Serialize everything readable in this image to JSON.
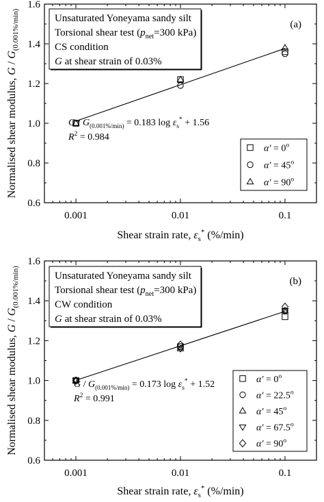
{
  "chart_data": [
    {
      "type": "scatter",
      "panel_label": "(a)",
      "x_scale": "log",
      "xlim": [
        0.0005,
        0.2
      ],
      "ylim": [
        0.6,
        1.6
      ],
      "xticks": [
        {
          "value": 0.001,
          "label": "0.001"
        },
        {
          "value": 0.01,
          "label": "0.01"
        },
        {
          "value": 0.1,
          "label": "0.1"
        }
      ],
      "yticks": [
        {
          "value": 0.6,
          "label": "0.6"
        },
        {
          "value": 0.8,
          "label": "0.8"
        },
        {
          "value": 1.0,
          "label": "1.0"
        },
        {
          "value": 1.2,
          "label": "1.2"
        },
        {
          "value": 1.4,
          "label": "1.4"
        },
        {
          "value": 1.6,
          "label": "1.6"
        }
      ],
      "info_lines": [
        "Unsaturated Yoneyama sandy silt",
        "Torsional shear test (",
        "p",
        "net",
        "=300 kPa)",
        "CS condition",
        "G at shear strain of 0.03%"
      ],
      "info": {
        "line1": "Unsaturated Yoneyama sandy silt",
        "line2_pre": "Torsional shear test (",
        "line2_p": "p",
        "line2_sub": "net",
        "line2_post": "=300 kPa)",
        "line3": "CS condition",
        "line4_g": "G",
        "line4_rest": " at shear strain of 0.03%"
      },
      "equation": {
        "lhs_g": "G",
        "lhs_slash": " / ",
        "lhs_g2": "G",
        "lhs_sub": "(0.001%/min)",
        "middle": " = 0.183 log ",
        "eps": "ε",
        "eps_sub": "s",
        "eps_sup": "*",
        "tail": " + 1.56",
        "r2_r": "R",
        "r2_sup": "2",
        "r2_value": " = 0.984"
      },
      "fit": {
        "slope": 0.183,
        "intercept": 1.56,
        "x_range": [
          0.001,
          0.1
        ]
      },
      "legend_position": "bottom-right",
      "series": [
        {
          "name": "0",
          "marker": "square",
          "points": [
            [
              0.001,
              1.0
            ],
            [
              0.01,
              1.22
            ],
            [
              0.1,
              1.36
            ]
          ]
        },
        {
          "name": "45",
          "marker": "circle",
          "points": [
            [
              0.001,
              1.0
            ],
            [
              0.01,
              1.19
            ],
            [
              0.1,
              1.35
            ]
          ]
        },
        {
          "name": "90",
          "marker": "triangle-up",
          "points": [
            [
              0.001,
              1.0
            ],
            [
              0.01,
              1.22
            ],
            [
              0.1,
              1.38
            ]
          ]
        }
      ],
      "legend_prefix": "α′ = ",
      "legend_unit": "o",
      "ylabel_main": "Normalised shear modulus, ",
      "ylabel_g": "G",
      "ylabel_slash": " / ",
      "ylabel_g2": "G",
      "ylabel_sub": "(0.001%/min)",
      "xlabel_main": "Shear strain rate,  ",
      "xlabel_eps": "ε",
      "xlabel_sub": "s",
      "xlabel_sup": "*",
      "xlabel_unit": "  (%/min)"
    },
    {
      "type": "scatter",
      "panel_label": "(b)",
      "x_scale": "log",
      "xlim": [
        0.0005,
        0.2
      ],
      "ylim": [
        0.6,
        1.6
      ],
      "xticks": [
        {
          "value": 0.001,
          "label": "0.001"
        },
        {
          "value": 0.01,
          "label": "0.01"
        },
        {
          "value": 0.1,
          "label": "0.1"
        }
      ],
      "yticks": [
        {
          "value": 0.6,
          "label": "0.6"
        },
        {
          "value": 0.8,
          "label": "0.8"
        },
        {
          "value": 1.0,
          "label": "1.0"
        },
        {
          "value": 1.2,
          "label": "1.2"
        },
        {
          "value": 1.4,
          "label": "1.4"
        },
        {
          "value": 1.6,
          "label": "1.6"
        }
      ],
      "info": {
        "line1": "Unsaturated Yoneyama sandy silt",
        "line2_pre": "Torsional shear test (",
        "line2_p": "p",
        "line2_sub": "net",
        "line2_post": "=300 kPa)",
        "line3": "CW condition",
        "line4_g": "G",
        "line4_rest": " at shear strain of 0.03%"
      },
      "equation": {
        "lhs_g": "G",
        "lhs_slash": " / ",
        "lhs_g2": "G",
        "lhs_sub": "(0.001%/min)",
        "middle": " = 0.173 log ",
        "eps": "ε",
        "eps_sub": "s",
        "eps_sup": "*",
        "tail": " + 1.52",
        "r2_r": "R",
        "r2_sup": "2",
        "r2_value": " = 0.991"
      },
      "fit": {
        "slope": 0.173,
        "intercept": 1.52,
        "x_range": [
          0.001,
          0.1
        ]
      },
      "legend_position": "bottom-right",
      "series": [
        {
          "name": "0",
          "marker": "square",
          "points": [
            [
              0.001,
              1.0
            ],
            [
              0.01,
              1.17
            ],
            [
              0.1,
              1.32
            ]
          ]
        },
        {
          "name": "22.5",
          "marker": "circle",
          "points": [
            [
              0.001,
              1.0
            ],
            [
              0.01,
              1.17
            ],
            [
              0.1,
              1.35
            ]
          ]
        },
        {
          "name": "45",
          "marker": "triangle-up",
          "points": [
            [
              0.001,
              1.0
            ],
            [
              0.01,
              1.16
            ],
            [
              0.1,
              1.35
            ]
          ]
        },
        {
          "name": "67.5",
          "marker": "triangle-down",
          "points": [
            [
              0.001,
              1.0
            ],
            [
              0.01,
              1.16
            ],
            [
              0.1,
              1.35
            ]
          ]
        },
        {
          "name": "90",
          "marker": "diamond",
          "points": [
            [
              0.001,
              1.0
            ],
            [
              0.01,
              1.18
            ],
            [
              0.1,
              1.37
            ]
          ]
        }
      ],
      "legend_prefix": "α′ = ",
      "legend_unit": "o",
      "ylabel_main": "Normalised shear modulus, ",
      "ylabel_g": "G",
      "ylabel_slash": " / ",
      "ylabel_g2": "G",
      "ylabel_sub": "(0.001%/min)",
      "xlabel_main": "Shear strain rate,  ",
      "xlabel_eps": "ε",
      "xlabel_sub": "s",
      "xlabel_sup": "*",
      "xlabel_unit": "  (%/min)"
    }
  ]
}
